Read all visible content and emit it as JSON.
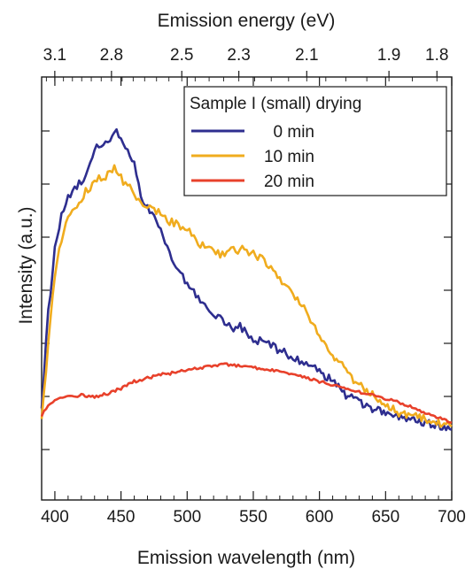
{
  "chart_data": {
    "type": "line",
    "title": "",
    "xlabel": "Emission wavelength (nm)",
    "ylabel": "Intensity (a.u.)",
    "top_xlabel": "Emission energy (eV)",
    "xlim": [
      390,
      700
    ],
    "ylim": [
      0,
      1
    ],
    "x_ticks": [
      400,
      450,
      500,
      550,
      600,
      650,
      700
    ],
    "x_tick_labels": [
      "400",
      "450",
      "500",
      "550",
      "600",
      "650",
      "700"
    ],
    "top_ticks_ev": [
      3.1,
      2.8,
      2.5,
      2.3,
      2.1,
      1.9,
      1.8
    ],
    "top_tick_labels": [
      "3.1",
      "2.8",
      "2.5",
      "2.3",
      "2.1",
      "1.9",
      "1.8"
    ],
    "y_tick_labels": [],
    "legend_title": "Sample I (small) drying",
    "legend_position": "top-right",
    "series": [
      {
        "name": "0 min",
        "color": "#2e2e8f",
        "x": [
          390,
          395,
          400,
          405,
          410,
          415,
          420,
          425,
          430,
          435,
          440,
          445,
          450,
          455,
          460,
          465,
          470,
          475,
          480,
          485,
          490,
          495,
          500,
          505,
          510,
          515,
          520,
          525,
          530,
          535,
          540,
          545,
          550,
          555,
          560,
          565,
          570,
          575,
          580,
          585,
          590,
          595,
          600,
          610,
          620,
          630,
          640,
          650,
          660,
          670,
          680,
          690,
          700
        ],
        "y": [
          0.12,
          0.39,
          0.57,
          0.68,
          0.73,
          0.75,
          0.77,
          0.81,
          0.86,
          0.88,
          0.89,
          0.92,
          0.9,
          0.86,
          0.83,
          0.73,
          0.7,
          0.67,
          0.64,
          0.58,
          0.53,
          0.5,
          0.48,
          0.45,
          0.43,
          0.4,
          0.39,
          0.37,
          0.36,
          0.34,
          0.35,
          0.33,
          0.31,
          0.31,
          0.3,
          0.29,
          0.28,
          0.27,
          0.26,
          0.25,
          0.24,
          0.23,
          0.22,
          0.19,
          0.15,
          0.13,
          0.11,
          0.1,
          0.09,
          0.08,
          0.07,
          0.06,
          0.05
        ]
      },
      {
        "name": "10 min",
        "color": "#f0ac1e",
        "x": [
          390,
          395,
          400,
          405,
          410,
          415,
          420,
          425,
          430,
          435,
          440,
          445,
          450,
          455,
          460,
          465,
          470,
          475,
          480,
          485,
          490,
          495,
          500,
          505,
          510,
          515,
          520,
          525,
          530,
          535,
          540,
          545,
          550,
          555,
          560,
          565,
          570,
          575,
          580,
          585,
          590,
          595,
          600,
          605,
          610,
          620,
          630,
          640,
          650,
          660,
          670,
          680,
          690,
          700
        ],
        "y": [
          0.08,
          0.3,
          0.5,
          0.6,
          0.66,
          0.7,
          0.72,
          0.75,
          0.77,
          0.78,
          0.79,
          0.81,
          0.78,
          0.76,
          0.74,
          0.71,
          0.7,
          0.69,
          0.68,
          0.66,
          0.65,
          0.64,
          0.63,
          0.61,
          0.59,
          0.58,
          0.57,
          0.56,
          0.565,
          0.57,
          0.575,
          0.57,
          0.565,
          0.55,
          0.53,
          0.51,
          0.49,
          0.47,
          0.45,
          0.42,
          0.39,
          0.36,
          0.33,
          0.3,
          0.27,
          0.22,
          0.18,
          0.15,
          0.12,
          0.1,
          0.09,
          0.08,
          0.07,
          0.06
        ]
      },
      {
        "name": "20 min",
        "color": "#e8412b",
        "x": [
          390,
          395,
          400,
          410,
          420,
          430,
          440,
          450,
          460,
          470,
          480,
          490,
          500,
          510,
          520,
          530,
          540,
          550,
          560,
          570,
          580,
          590,
          600,
          610,
          620,
          630,
          640,
          650,
          660,
          670,
          680,
          690,
          700
        ],
        "y": [
          0.09,
          0.12,
          0.135,
          0.145,
          0.15,
          0.145,
          0.155,
          0.17,
          0.19,
          0.2,
          0.21,
          0.215,
          0.225,
          0.23,
          0.235,
          0.24,
          0.235,
          0.23,
          0.225,
          0.22,
          0.21,
          0.2,
          0.19,
          0.18,
          0.17,
          0.16,
          0.15,
          0.14,
          0.13,
          0.115,
          0.1,
          0.085,
          0.07
        ]
      }
    ]
  }
}
